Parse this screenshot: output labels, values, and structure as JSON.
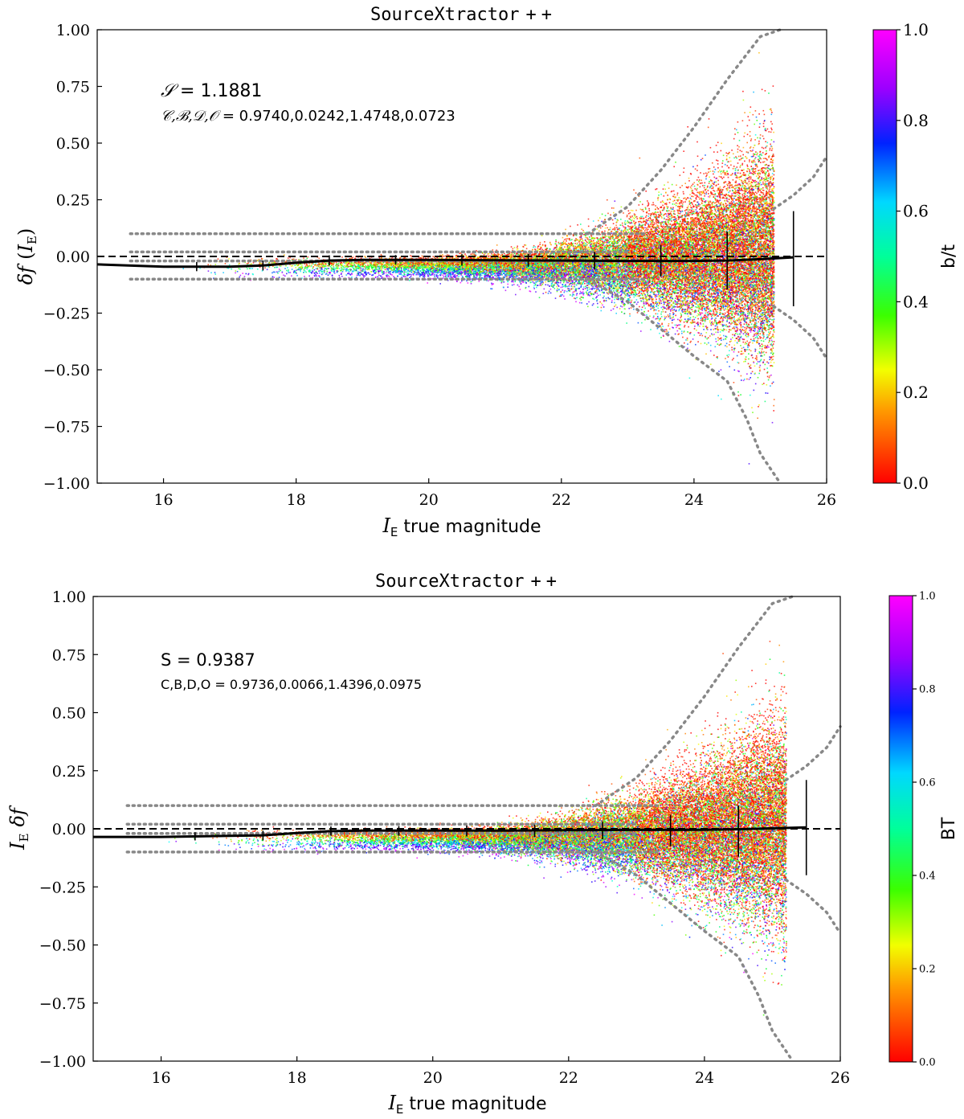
{
  "chart_data": [
    {
      "type": "scatter",
      "title": "SourceXtractor++",
      "title_parts": [
        "SourceXtractor",
        "+",
        "+"
      ],
      "xlabel": "true magnitude",
      "xlabel_sym": "I",
      "xlabel_sub": "E",
      "ylabel": "δf (I_E)",
      "ylabel_parts": {
        "delta": "δ",
        "f": "f",
        "open": "(",
        "sym": "I",
        "sub": "E",
        "close": ")"
      },
      "xlim": [
        15,
        26
      ],
      "ylim": [
        -1.0,
        1.0
      ],
      "xticks": [
        16,
        18,
        20,
        22,
        24,
        26
      ],
      "xtick_labels": [
        "16",
        "18",
        "20",
        "22",
        "24",
        "26"
      ],
      "yticks": [
        -1.0,
        -0.75,
        -0.5,
        -0.25,
        0.0,
        0.25,
        0.5,
        0.75,
        1.0
      ],
      "ytick_labels": [
        "−1.00",
        "−0.75",
        "−0.50",
        "−0.25",
        "0.00",
        "0.25",
        "0.50",
        "0.75",
        "1.00"
      ],
      "annotation_1": {
        "sym": "𝒮",
        "rest": " = 1.1881"
      },
      "annotation_2": {
        "sym": "𝒞,ℬ,𝒟,𝒪",
        "rest": " = 0.9740,0.0242,1.4748,0.0723"
      },
      "colorbar": {
        "label": "b/t",
        "ticks": [
          0.0,
          0.2,
          0.4,
          0.6,
          0.8,
          1.0
        ],
        "tick_labels": [
          "0.0",
          "0.2",
          "0.4",
          "0.6",
          "0.8",
          "1.0"
        ]
      },
      "median_curve": {
        "x": [
          15.0,
          16.0,
          17.0,
          17.5,
          18.0,
          18.5,
          19.0,
          20.0,
          21.0,
          22.0,
          23.0,
          24.0,
          24.5,
          25.0,
          25.5
        ],
        "y": [
          -0.035,
          -0.045,
          -0.045,
          -0.04,
          -0.028,
          -0.018,
          -0.015,
          -0.015,
          -0.017,
          -0.018,
          -0.02,
          -0.02,
          -0.018,
          -0.012,
          -0.004
        ]
      },
      "error_bars": {
        "x": [
          16.5,
          17.5,
          18.5,
          19.5,
          20.5,
          21.5,
          22.5,
          23.5,
          24.5,
          25.5
        ],
        "y": [
          -0.045,
          -0.04,
          -0.018,
          -0.015,
          -0.015,
          -0.017,
          -0.02,
          -0.02,
          -0.018,
          -0.004
        ],
        "lo": [
          -0.065,
          -0.062,
          -0.04,
          -0.036,
          -0.04,
          -0.045,
          -0.058,
          -0.09,
          -0.145,
          -0.22
        ],
        "hi": [
          -0.025,
          -0.018,
          0.005,
          0.006,
          0.01,
          0.012,
          0.02,
          0.05,
          0.11,
          0.2
        ]
      },
      "reference_lines": [
        {
          "x": [
            15.5,
            23.3
          ],
          "y": [
            0.1,
            0.1
          ]
        },
        {
          "x": [
            15.5,
            23.0
          ],
          "y": [
            0.02,
            0.02
          ]
        },
        {
          "x": [
            15.5,
            23.0
          ],
          "y": [
            -0.02,
            -0.02
          ]
        },
        {
          "x": [
            15.5,
            23.3
          ],
          "y": [
            -0.1,
            -0.1
          ]
        }
      ],
      "envelope": [
        {
          "x": [
            22.4,
            23.0,
            23.5,
            24.0,
            24.5,
            25.0,
            25.3
          ],
          "y": [
            0.1,
            0.22,
            0.38,
            0.57,
            0.78,
            0.97,
            1.05
          ]
        },
        {
          "x": [
            22.4,
            23.0,
            23.5,
            24.0,
            24.5,
            24.8,
            25.0,
            25.3
          ],
          "y": [
            -0.1,
            -0.2,
            -0.32,
            -0.44,
            -0.55,
            -0.72,
            -0.87,
            -1.05
          ]
        },
        {
          "x": [
            25.2,
            25.5,
            25.8,
            26.1
          ],
          "y": [
            0.21,
            0.27,
            0.35,
            0.44
          ]
        },
        {
          "x": [
            25.2,
            25.5,
            25.8,
            26.1
          ],
          "y": [
            -0.22,
            -0.28,
            -0.36,
            -0.45
          ]
        }
      ],
      "scatter_cutoff_x": 25.2,
      "n_points": 28000
    },
    {
      "type": "scatter",
      "title": "SourceXtractor++",
      "title_parts": [
        "SourceXtractor",
        "+",
        "+"
      ],
      "xlabel": "true magnitude",
      "xlabel_sym": "I",
      "xlabel_sub": "E",
      "ylabel": "I_E δf",
      "ylabel_parts": {
        "sym": "I",
        "sub": "E",
        "delta": "δ",
        "f": "f"
      },
      "xlim": [
        15,
        26
      ],
      "ylim": [
        -1.0,
        1.0
      ],
      "xticks": [
        16,
        18,
        20,
        22,
        24,
        26
      ],
      "xtick_labels": [
        "16",
        "18",
        "20",
        "22",
        "24",
        "26"
      ],
      "yticks": [
        -1.0,
        -0.75,
        -0.5,
        -0.25,
        0.0,
        0.25,
        0.5,
        0.75,
        1.0
      ],
      "ytick_labels": [
        "−1.00",
        "−0.75",
        "−0.50",
        "−0.25",
        "0.00",
        "0.25",
        "0.50",
        "0.75",
        "1.00"
      ],
      "annotation_1": {
        "sym": "S",
        "rest": " = 0.9387"
      },
      "annotation_2": {
        "sym": "C,B,D,O",
        "rest": " = 0.9736,0.0066,1.4396,0.0975"
      },
      "colorbar": {
        "label": "BT",
        "ticks": [
          0.0,
          0.2,
          0.4,
          0.6,
          0.8,
          1.0
        ],
        "tick_labels": [
          "0.0",
          "0.2",
          "0.4",
          "0.6",
          "0.8",
          "1.0"
        ]
      },
      "median_curve": {
        "x": [
          15.0,
          16.0,
          17.0,
          17.5,
          18.0,
          18.5,
          19.0,
          20.0,
          21.0,
          22.0,
          23.0,
          24.0,
          24.5,
          25.0,
          25.5
        ],
        "y": [
          -0.035,
          -0.035,
          -0.03,
          -0.028,
          -0.018,
          -0.01,
          -0.008,
          -0.008,
          -0.008,
          -0.006,
          -0.005,
          -0.004,
          -0.002,
          0.002,
          0.006
        ]
      },
      "error_bars": {
        "x": [
          16.5,
          17.5,
          18.5,
          19.5,
          20.5,
          21.5,
          22.5,
          23.5,
          24.5,
          25.5
        ],
        "y": [
          -0.033,
          -0.028,
          -0.01,
          -0.008,
          -0.008,
          -0.007,
          -0.005,
          -0.004,
          -0.002,
          0.006
        ],
        "lo": [
          -0.05,
          -0.05,
          -0.03,
          -0.03,
          -0.032,
          -0.035,
          -0.045,
          -0.075,
          -0.12,
          -0.2
        ],
        "hi": [
          -0.015,
          -0.008,
          0.01,
          0.012,
          0.014,
          0.018,
          0.03,
          0.06,
          0.1,
          0.21
        ]
      },
      "reference_lines": [
        {
          "x": [
            15.5,
            23.3
          ],
          "y": [
            0.1,
            0.1
          ]
        },
        {
          "x": [
            15.5,
            23.0
          ],
          "y": [
            0.02,
            0.02
          ]
        },
        {
          "x": [
            15.5,
            23.0
          ],
          "y": [
            -0.02,
            -0.02
          ]
        },
        {
          "x": [
            15.5,
            23.3
          ],
          "y": [
            -0.1,
            -0.1
          ]
        }
      ],
      "envelope": [
        {
          "x": [
            22.4,
            23.0,
            23.5,
            24.0,
            24.5,
            25.0,
            25.3
          ],
          "y": [
            0.1,
            0.22,
            0.38,
            0.57,
            0.78,
            0.97,
            1.05
          ]
        },
        {
          "x": [
            22.4,
            23.0,
            23.5,
            24.0,
            24.5,
            24.8,
            25.0,
            25.3
          ],
          "y": [
            -0.1,
            -0.2,
            -0.32,
            -0.44,
            -0.55,
            -0.72,
            -0.87,
            -1.05
          ]
        },
        {
          "x": [
            25.2,
            25.5,
            25.8,
            26.1
          ],
          "y": [
            0.21,
            0.27,
            0.35,
            0.44
          ]
        },
        {
          "x": [
            25.2,
            25.5,
            25.8,
            26.1
          ],
          "y": [
            -0.22,
            -0.28,
            -0.36,
            -0.45
          ]
        }
      ],
      "scatter_cutoff_x": 25.2,
      "n_points": 28000
    }
  ]
}
